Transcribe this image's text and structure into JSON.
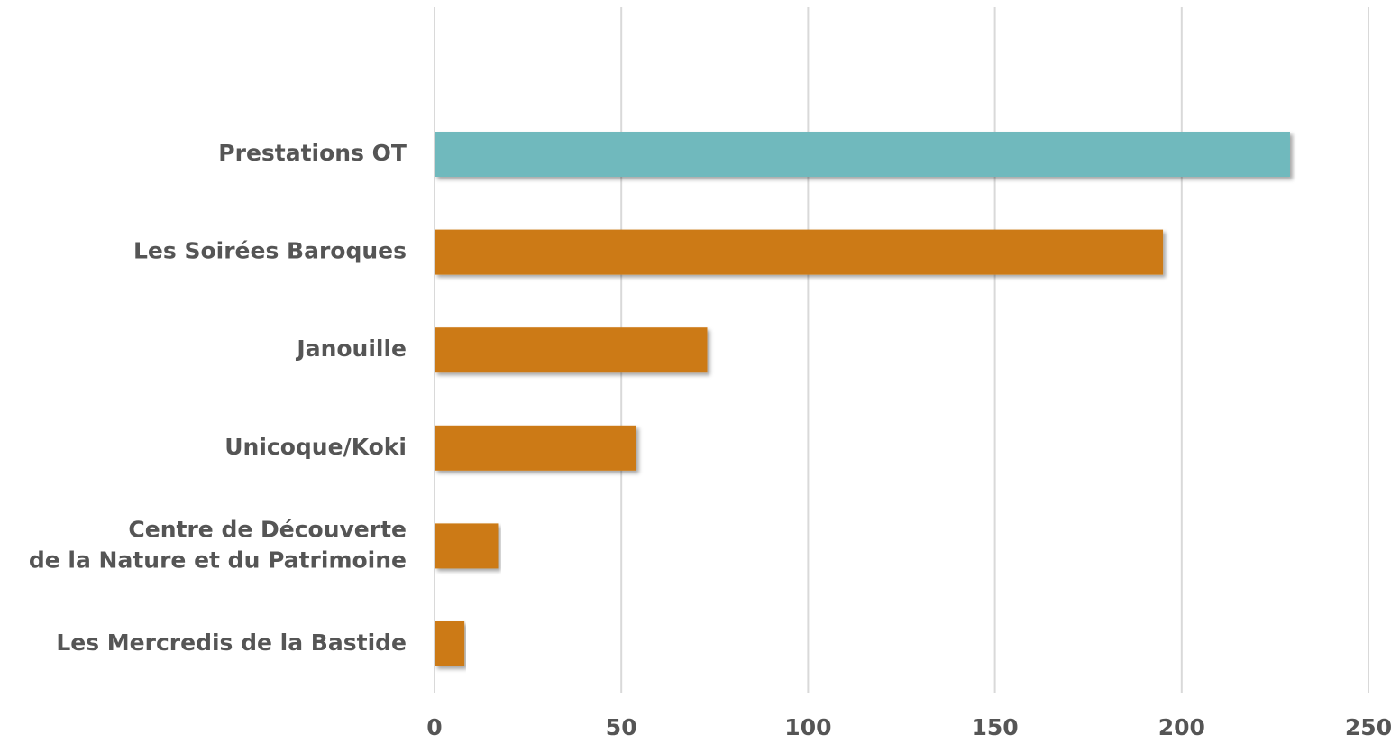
{
  "chart_data": {
    "type": "barh",
    "categories": [
      "Prestations OT",
      "Les Soirées Baroques",
      "Janouille",
      "Unicoque/Koki",
      "Centre de Découverte\nde la Nature et du Patrimoine",
      "Les Mercredis de la Bastide"
    ],
    "values": [
      229,
      195,
      73,
      54,
      17,
      8
    ],
    "colors": [
      "#70b9bd",
      "#cc7a12",
      "#cc7a12",
      "#cc7a12",
      "#cc7a12",
      "#cc7a12"
    ],
    "xlim": [
      0,
      250
    ],
    "xticks": [
      0,
      50,
      100,
      150,
      200,
      250
    ],
    "grid": true
  }
}
